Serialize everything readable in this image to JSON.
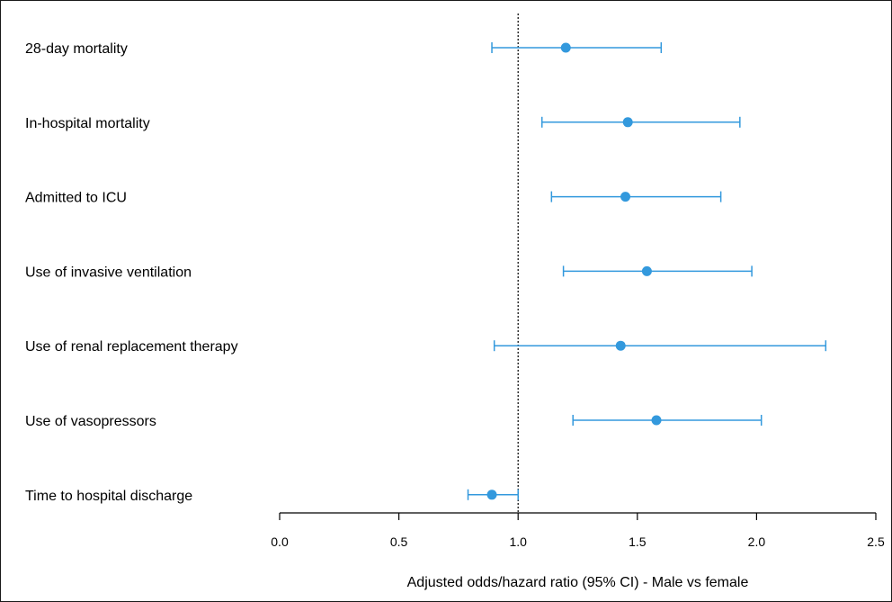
{
  "chart_data": {
    "type": "forest",
    "title": "",
    "xlabel": "Adjusted odds/hazard ratio (95% CI) - Male vs female",
    "xlim": [
      0.0,
      2.5
    ],
    "x_ticks": [
      0.0,
      0.5,
      1.0,
      1.5,
      2.0,
      2.5
    ],
    "x_tick_labels": [
      "0.0",
      "0.5",
      "1.0",
      "1.5",
      "2.0",
      "2.5"
    ],
    "reference_line": 1.0,
    "grid": false,
    "legend": "none",
    "colors": {
      "marker": "#3399dd",
      "reference_line": "#000000",
      "axis": "#000000"
    },
    "rows": [
      {
        "label": "28-day mortality",
        "estimate": 1.2,
        "lower": 0.89,
        "upper": 1.6
      },
      {
        "label": "In-hospital mortality",
        "estimate": 1.46,
        "lower": 1.1,
        "upper": 1.93
      },
      {
        "label": "Admitted to ICU",
        "estimate": 1.45,
        "lower": 1.14,
        "upper": 1.85
      },
      {
        "label": "Use of invasive ventilation",
        "estimate": 1.54,
        "lower": 1.19,
        "upper": 1.98
      },
      {
        "label": "Use of renal replacement therapy",
        "estimate": 1.43,
        "lower": 0.9,
        "upper": 2.29
      },
      {
        "label": "Use of vasopressors",
        "estimate": 1.58,
        "lower": 1.23,
        "upper": 2.02
      },
      {
        "label": "Time to hospital discharge",
        "estimate": 0.89,
        "lower": 0.79,
        "upper": 1.0
      }
    ]
  }
}
